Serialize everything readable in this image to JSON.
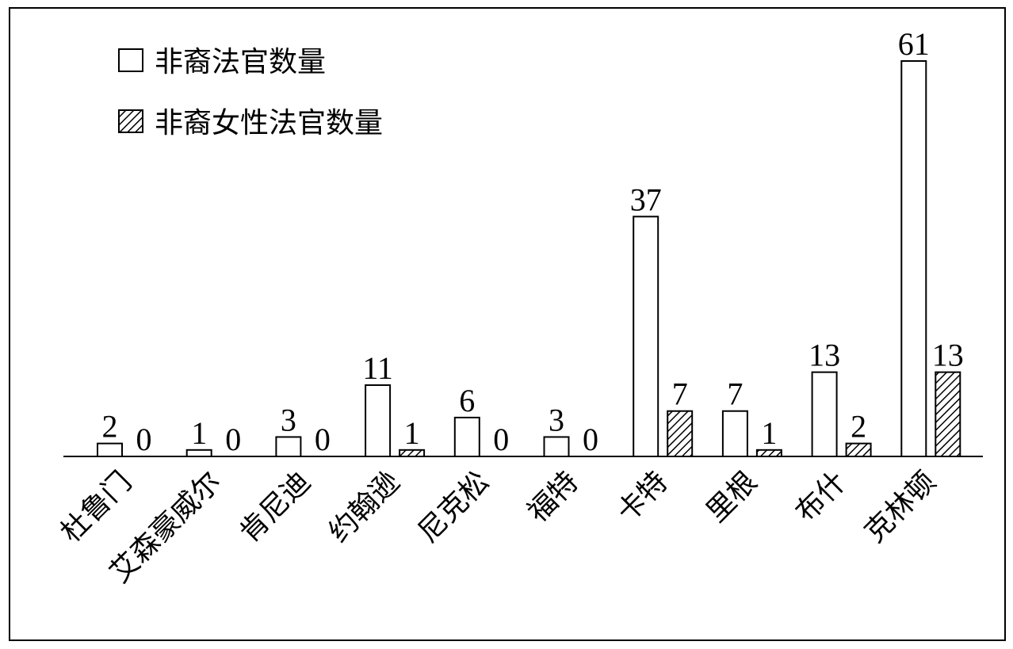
{
  "chart_data": {
    "type": "bar",
    "categories": [
      "杜鲁门",
      "艾森豪威尔",
      "肯尼迪",
      "约翰逊",
      "尼克松",
      "福特",
      "卡特",
      "里根",
      "布什",
      "克林顿"
    ],
    "series": [
      {
        "name": "非裔法官数量",
        "color": "#ffffff",
        "values": [
          2,
          1,
          3,
          11,
          6,
          3,
          37,
          7,
          13,
          61
        ]
      },
      {
        "name": "非裔女性法官数量",
        "color": "hatch",
        "values": [
          0,
          0,
          0,
          1,
          0,
          0,
          7,
          1,
          2,
          13
        ]
      }
    ]
  }
}
